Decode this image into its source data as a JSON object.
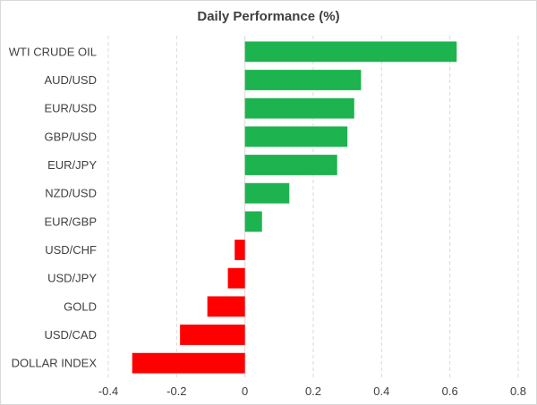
{
  "chart_data": {
    "type": "bar",
    "orientation": "horizontal",
    "title": "Daily Performance (%)",
    "xlabel": "",
    "ylabel": "",
    "categories": [
      "WTI CRUDE OIL",
      "AUD/USD",
      "EUR/USD",
      "GBP/USD",
      "EUR/JPY",
      "NZD/USD",
      "EUR/GBP",
      "USD/CHF",
      "USD/JPY",
      "GOLD",
      "USD/CAD",
      "DOLLAR INDEX"
    ],
    "values": [
      0.62,
      0.34,
      0.32,
      0.3,
      0.27,
      0.13,
      0.05,
      -0.03,
      -0.05,
      -0.11,
      -0.19,
      -0.33
    ],
    "xlim": [
      -0.4,
      0.8
    ],
    "ticks": [
      -0.4,
      -0.2,
      0,
      0.2,
      0.4,
      0.6,
      0.8
    ],
    "tick_labels": [
      "-0.4",
      "-0.2",
      "0",
      "0.2",
      "0.4",
      "0.6",
      "0.8"
    ],
    "grid": "vertical dashed",
    "legend": "none",
    "colors": {
      "positive": "#1db34f",
      "negative": "#ff0000",
      "gridline": "#d9d9d9",
      "zero_axis": "#d9d9d9",
      "text": "#404040"
    }
  }
}
